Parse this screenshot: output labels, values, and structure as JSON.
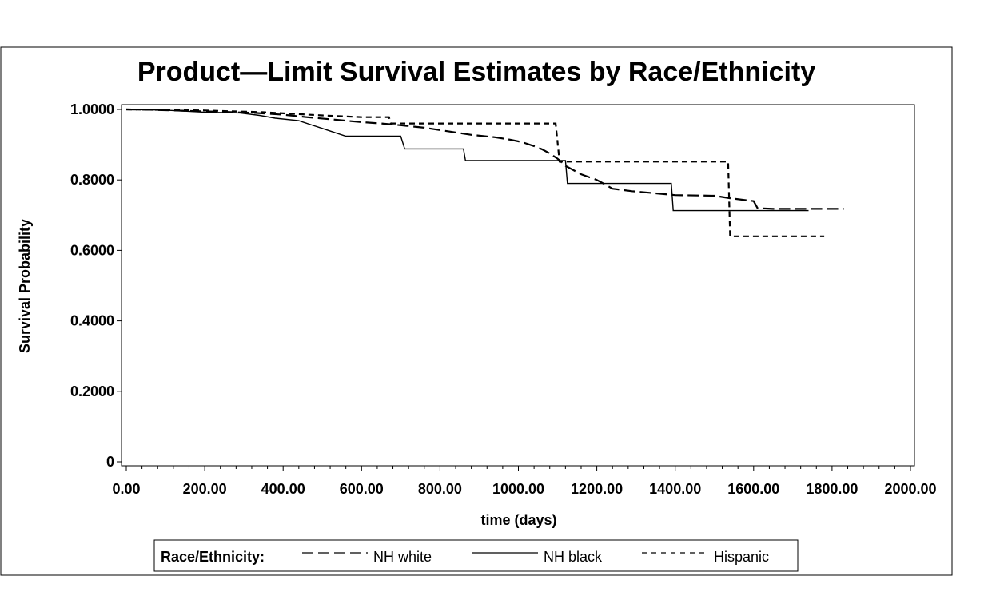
{
  "chart_data": {
    "type": "line",
    "title": "Product—Limit Survival Estimates by Race/Ethnicity",
    "xlabel": "time (days)",
    "ylabel": "Survival Probability",
    "xlim": [
      0,
      2000
    ],
    "ylim": [
      0,
      1
    ],
    "x_ticks": [
      0,
      200,
      400,
      600,
      800,
      1000,
      1200,
      1400,
      1600,
      1800,
      2000
    ],
    "x_tick_labels": [
      "0.00",
      "200.00",
      "400.00",
      "600.00",
      "800.00",
      "1000.00",
      "1200.00",
      "1400.00",
      "1600.00",
      "1800.00",
      "2000.00"
    ],
    "y_ticks": [
      0,
      0.2,
      0.4,
      0.6,
      0.8,
      1.0
    ],
    "y_tick_labels": [
      "0",
      "0.2000",
      "0.4000",
      "0.6000",
      "0.8000",
      "1.0000"
    ],
    "grid": false,
    "legend": {
      "title": "Race/Ethnicity:",
      "position": "bottom",
      "entries": [
        "NH white",
        "NH black",
        "Hispanic"
      ]
    },
    "series": [
      {
        "name": "NH white",
        "style": "long-dash",
        "points": [
          [
            0,
            1.0
          ],
          [
            60,
            0.999
          ],
          [
            120,
            0.997
          ],
          [
            180,
            0.995
          ],
          [
            250,
            0.993
          ],
          [
            330,
            0.99
          ],
          [
            400,
            0.985
          ],
          [
            460,
            0.978
          ],
          [
            520,
            0.972
          ],
          [
            560,
            0.968
          ],
          [
            600,
            0.964
          ],
          [
            650,
            0.96
          ],
          [
            700,
            0.955
          ],
          [
            760,
            0.948
          ],
          [
            820,
            0.938
          ],
          [
            880,
            0.928
          ],
          [
            940,
            0.921
          ],
          [
            980,
            0.914
          ],
          [
            1010,
            0.907
          ],
          [
            1040,
            0.896
          ],
          [
            1060,
            0.887
          ],
          [
            1080,
            0.875
          ],
          [
            1100,
            0.86
          ],
          [
            1120,
            0.84
          ],
          [
            1140,
            0.828
          ],
          [
            1160,
            0.816
          ],
          [
            1200,
            0.8
          ],
          [
            1220,
            0.788
          ],
          [
            1240,
            0.775
          ],
          [
            1290,
            0.768
          ],
          [
            1350,
            0.762
          ],
          [
            1400,
            0.757
          ],
          [
            1500,
            0.755
          ],
          [
            1540,
            0.748
          ],
          [
            1600,
            0.74
          ],
          [
            1610,
            0.72
          ],
          [
            1650,
            0.718
          ],
          [
            1830,
            0.718
          ]
        ]
      },
      {
        "name": "NH black",
        "style": "solid",
        "points": [
          [
            0,
            1.0
          ],
          [
            100,
            0.998
          ],
          [
            200,
            0.992
          ],
          [
            290,
            0.99
          ],
          [
            340,
            0.983
          ],
          [
            380,
            0.975
          ],
          [
            440,
            0.968
          ],
          [
            470,
            0.957
          ],
          [
            500,
            0.946
          ],
          [
            530,
            0.935
          ],
          [
            560,
            0.924
          ],
          [
            700,
            0.924
          ],
          [
            710,
            0.888
          ],
          [
            860,
            0.888
          ],
          [
            865,
            0.855
          ],
          [
            1120,
            0.855
          ],
          [
            1125,
            0.79
          ],
          [
            1390,
            0.79
          ],
          [
            1395,
            0.713
          ],
          [
            1740,
            0.713
          ]
        ]
      },
      {
        "name": "Hispanic",
        "style": "short-dash",
        "points": [
          [
            0,
            1.0
          ],
          [
            200,
            0.997
          ],
          [
            350,
            0.992
          ],
          [
            500,
            0.983
          ],
          [
            600,
            0.978
          ],
          [
            670,
            0.978
          ],
          [
            675,
            0.96
          ],
          [
            1095,
            0.96
          ],
          [
            1105,
            0.852
          ],
          [
            1535,
            0.852
          ],
          [
            1540,
            0.64
          ],
          [
            1780,
            0.64
          ]
        ]
      }
    ]
  }
}
